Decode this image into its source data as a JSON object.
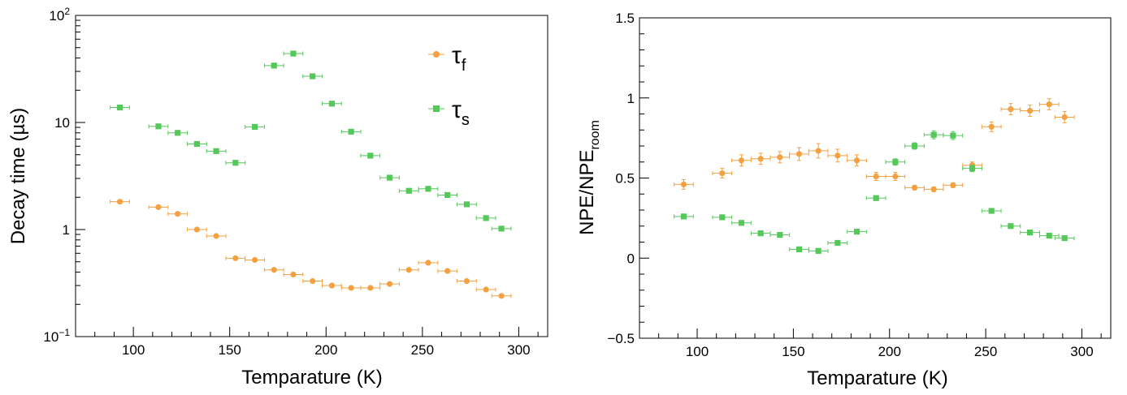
{
  "chart_data": [
    {
      "type": "scatter",
      "ylabel": "Decay time (µs)",
      "xlabel": "Temparature (K)",
      "yscale": "log",
      "xlim": [
        70,
        315
      ],
      "ylim": [
        0.1,
        100
      ],
      "x_ticks": [
        "100",
        "150",
        "200",
        "250",
        "300"
      ],
      "y_tick_labels": [
        {
          "base": "10",
          "exp": "−1"
        },
        {
          "base": "1",
          "exp": ""
        },
        {
          "base": "10",
          "exp": ""
        },
        {
          "base": "10",
          "exp": "2"
        }
      ],
      "legend": {
        "position": "top-right",
        "entries": [
          {
            "symbol": "τ",
            "sub": "f"
          },
          {
            "symbol": "τ",
            "sub": "s"
          }
        ]
      },
      "series": [
        {
          "name": "tau_f",
          "color": "#f5a142",
          "marker": "circle",
          "x": [
            93,
            113,
            123,
            133,
            143,
            153,
            163,
            173,
            183,
            193,
            203,
            213,
            223,
            233,
            243,
            253,
            263,
            273,
            283,
            291
          ],
          "y": [
            1.82,
            1.62,
            1.4,
            1.0,
            0.87,
            0.54,
            0.52,
            0.42,
            0.38,
            0.33,
            0.3,
            0.285,
            0.285,
            0.31,
            0.42,
            0.49,
            0.41,
            0.33,
            0.275,
            0.24
          ],
          "xerr": 5
        },
        {
          "name": "tau_s",
          "color": "#55c85a",
          "marker": "square",
          "x": [
            93,
            113,
            123,
            133,
            143,
            153,
            163,
            173,
            183,
            193,
            203,
            213,
            223,
            233,
            243,
            253,
            263,
            273,
            283,
            291
          ],
          "y": [
            13.8,
            9.2,
            8.0,
            6.3,
            5.4,
            4.2,
            9.1,
            34,
            44,
            27,
            15,
            8.2,
            4.9,
            3.05,
            2.3,
            2.4,
            2.1,
            1.72,
            1.28,
            1.02
          ],
          "xerr": 5
        }
      ]
    },
    {
      "type": "scatter",
      "ylabel": "NPE/NPE",
      "ylabel_sub": "room",
      "xlabel": "Temparature (K)",
      "xlim": [
        70,
        315
      ],
      "ylim": [
        -0.5,
        1.5
      ],
      "x_ticks": [
        "100",
        "150",
        "200",
        "250",
        "300"
      ],
      "y_ticks": [
        "−0.5",
        "0",
        "0.5",
        "1",
        "1.5"
      ],
      "series": [
        {
          "name": "orange",
          "color": "#f5a142",
          "marker": "circle",
          "x": [
            93,
            113,
            123,
            133,
            143,
            153,
            163,
            173,
            183,
            193,
            203,
            213,
            223,
            233,
            243,
            253,
            263,
            273,
            283,
            291
          ],
          "y": [
            0.46,
            0.53,
            0.61,
            0.62,
            0.63,
            0.65,
            0.67,
            0.64,
            0.61,
            0.51,
            0.51,
            0.44,
            0.43,
            0.455,
            0.58,
            0.82,
            0.93,
            0.92,
            0.96,
            0.88
          ],
          "yerr": [
            0.03,
            0.03,
            0.035,
            0.035,
            0.035,
            0.04,
            0.045,
            0.04,
            0.035,
            0.025,
            0.025,
            0.015,
            0.015,
            0.015,
            0.02,
            0.03,
            0.035,
            0.035,
            0.035,
            0.035
          ],
          "xerr": 5
        },
        {
          "name": "green",
          "color": "#55c85a",
          "marker": "square",
          "x": [
            93,
            113,
            123,
            133,
            143,
            153,
            163,
            173,
            183,
            193,
            203,
            213,
            223,
            233,
            243,
            253,
            263,
            273,
            283,
            291
          ],
          "y": [
            0.26,
            0.255,
            0.22,
            0.155,
            0.145,
            0.055,
            0.045,
            0.095,
            0.165,
            0.375,
            0.6,
            0.7,
            0.77,
            0.765,
            0.56,
            0.295,
            0.2,
            0.16,
            0.14,
            0.125
          ],
          "yerr": [
            0.01,
            0.01,
            0.01,
            0.01,
            0.01,
            0.008,
            0.008,
            0.01,
            0.01,
            0.015,
            0.02,
            0.02,
            0.025,
            0.025,
            0.02,
            0.01,
            0.01,
            0.01,
            0.01,
            0.01
          ],
          "xerr": 5
        }
      ]
    }
  ]
}
